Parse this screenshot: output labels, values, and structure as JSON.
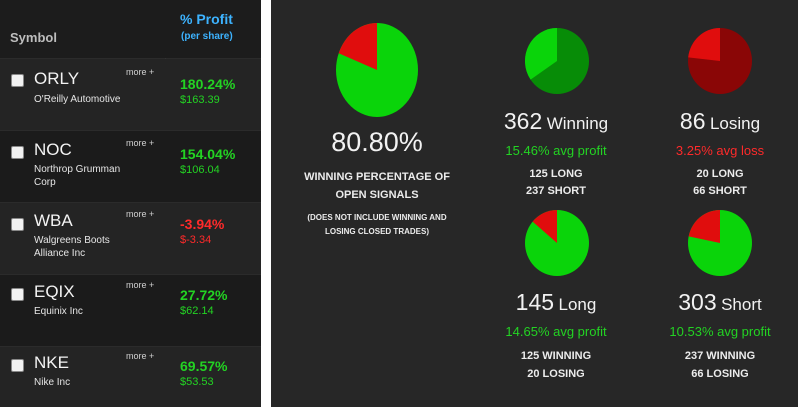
{
  "table": {
    "header": {
      "symbol": "Symbol",
      "profit": "% Profit",
      "profit_sub": "(per share)"
    },
    "more_label": "more +",
    "rows": [
      {
        "symbol": "ORLY",
        "name": "O'Reilly Automotive",
        "pct": "180.24%",
        "amount": "$163.39",
        "status": "positive"
      },
      {
        "symbol": "NOC",
        "name": "Northrop Grumman Corp",
        "pct": "154.04%",
        "amount": "$106.04",
        "status": "positive"
      },
      {
        "symbol": "WBA",
        "name": "Walgreens Boots Alliance Inc",
        "pct": "-3.94%",
        "amount": "$-3.34",
        "status": "negative"
      },
      {
        "symbol": "EQIX",
        "name": "Equinix Inc",
        "pct": "27.72%",
        "amount": "$62.14",
        "status": "positive"
      },
      {
        "symbol": "NKE",
        "name": "Nike Inc",
        "pct": "69.57%",
        "amount": "$53.53",
        "status": "positive"
      }
    ]
  },
  "summary": {
    "winning_pct": "80.80%",
    "winning_caption_1": "WINNING PERCENTAGE OF",
    "winning_caption_2": "OPEN SIGNALS",
    "note_1": "(DOES NOT INCLUDE WINNING AND",
    "note_2": "LOSING CLOSED TRADES)",
    "winning": {
      "count": "362",
      "label": "Winning",
      "avg": "15.46% avg profit",
      "line1": "125 LONG",
      "line2": "237 SHORT"
    },
    "losing": {
      "count": "86",
      "label": "Losing",
      "avg": "3.25% avg loss",
      "line1": "20 LONG",
      "line2": "66 SHORT"
    },
    "long": {
      "count": "145",
      "label": "Long",
      "avg": "14.65% avg profit",
      "line1": "125 WINNING",
      "line2": "20 LOSING"
    },
    "short": {
      "count": "303",
      "label": "Short",
      "avg": "10.53% avg profit",
      "line1": "237 WINNING",
      "line2": "66 LOSING"
    }
  },
  "colors": {
    "green": "#0ad40a",
    "dark_green": "#078c07",
    "red": "#e00d0d",
    "dark_red": "#8a0606",
    "text_green": "#23d323",
    "text_red": "#ff2a2a"
  },
  "chart_data": [
    {
      "type": "pie",
      "title": "",
      "categories": [
        "Winning",
        "Losing"
      ],
      "values": [
        362,
        86
      ]
    },
    {
      "type": "pie",
      "title": "",
      "categories": [
        "Long",
        "Short"
      ],
      "values": [
        125,
        237
      ]
    },
    {
      "type": "pie",
      "title": "",
      "categories": [
        "Long",
        "Short"
      ],
      "values": [
        20,
        66
      ]
    },
    {
      "type": "pie",
      "title": "",
      "categories": [
        "Winning",
        "Losing"
      ],
      "values": [
        125,
        20
      ]
    },
    {
      "type": "pie",
      "title": "",
      "categories": [
        "Winning",
        "Losing"
      ],
      "values": [
        237,
        66
      ]
    }
  ]
}
